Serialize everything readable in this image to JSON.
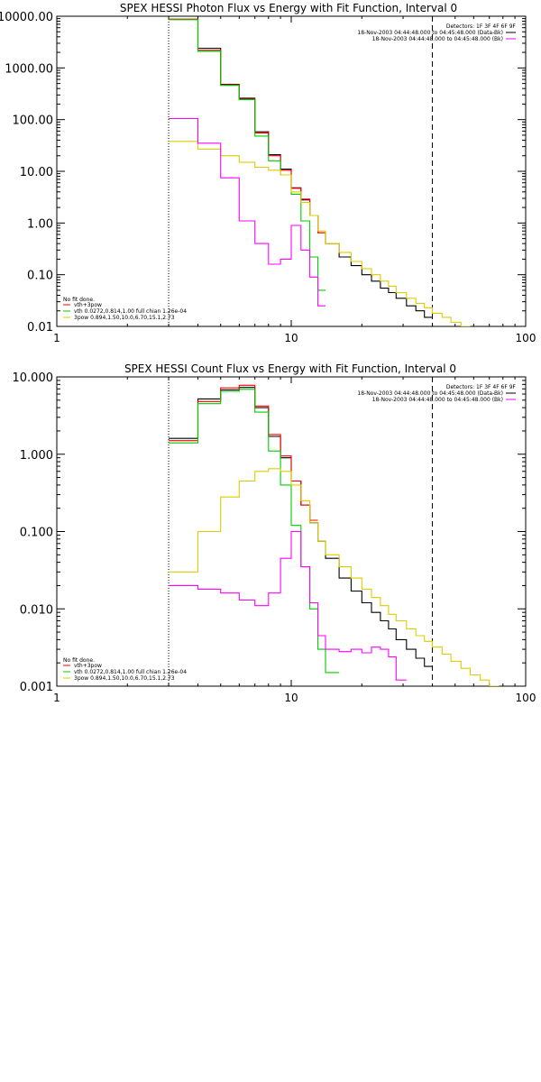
{
  "chart_data": [
    {
      "type": "line",
      "title": "SPEX HESSI Photon Flux vs Energy with Fit Function, Interval 0",
      "xscale": "log",
      "yscale": "log",
      "xlim": [
        1,
        100
      ],
      "ylim": [
        0.01,
        10000
      ],
      "xticks": [
        1,
        10,
        100
      ],
      "xtick_labels": [
        "1",
        "10",
        "100"
      ],
      "yticks": [
        0.01,
        0.1,
        1,
        10,
        100,
        1000,
        10000
      ],
      "ytick_labels": [
        "0.01",
        "0.10",
        "1.00",
        "10.00",
        "100.00",
        "1000.00",
        "10000.00"
      ],
      "vlines": [
        {
          "x": 3,
          "style": "dotted",
          "color": "#000000"
        },
        {
          "x": 40,
          "style": "dashed",
          "color": "#000000"
        }
      ],
      "info_lines": [
        "Detectors: 1F 3F 4F 6F 9F",
        "18-Nov-2003 04:44:48.000 to 04:45:48.000 (Data-Bk)",
        "18-Nov-2003 04:44:48.000 to 04:45:48.000 (Bk)"
      ],
      "info_colors": [
        "#000000",
        "#000000",
        "#ff00ff"
      ],
      "fit_notes": [
        {
          "text": "No fit done.",
          "color": null
        },
        {
          "text": "vth+3pow",
          "color": "#ff0000"
        },
        {
          "text": "vth 0.0272,0.814,1.00  full chian 1.26e-04",
          "color": "#00cc00"
        },
        {
          "text": "3pow 0.894,1.50,10.0,6.70,15.1,2.73",
          "color": "#ddcc00"
        }
      ],
      "edges": [
        3,
        4,
        5,
        6,
        7,
        8,
        9,
        10,
        11,
        12,
        13,
        14,
        16,
        18,
        20,
        22,
        24,
        26,
        28,
        31,
        34,
        37,
        40,
        44,
        48,
        53,
        58,
        64
      ],
      "series": [
        {
          "color": "#000000",
          "values": [
            10000,
            2400,
            480,
            260,
            58,
            21,
            11,
            4.8,
            2.8,
            1.4,
            0.65,
            0.4,
            0.22,
            0.15,
            0.1,
            0.075,
            0.055,
            0.045,
            0.035,
            0.025,
            0.02,
            0.015,
            null,
            null,
            null,
            null,
            null
          ]
        },
        {
          "color": "#ff0000",
          "values": [
            8800,
            2200,
            470,
            250,
            55,
            20,
            10.5,
            4.7,
            2.9,
            1.4,
            0.65,
            0.4,
            null,
            null,
            null,
            null,
            null,
            null,
            null,
            null,
            null,
            null,
            null,
            null,
            null,
            null,
            null
          ]
        },
        {
          "color": "#00cc00",
          "values": [
            8600,
            2100,
            460,
            245,
            48,
            16,
            8.5,
            3.6,
            1.1,
            0.22,
            0.05,
            null,
            null,
            null,
            null,
            null,
            null,
            null,
            null,
            null,
            null,
            null,
            null,
            null,
            null,
            null,
            null
          ]
        },
        {
          "color": "#ddcc00",
          "values": [
            38,
            27,
            20,
            15,
            12,
            10.5,
            8.5,
            4.0,
            2.5,
            1.4,
            0.7,
            0.4,
            0.27,
            0.18,
            0.13,
            0.1,
            0.075,
            0.06,
            0.045,
            0.035,
            0.028,
            0.023,
            0.018,
            0.015,
            0.012,
            0.01,
            null
          ]
        },
        {
          "color": "#ff00ff",
          "values": [
            105,
            35,
            7.5,
            1.1,
            0.4,
            0.16,
            0.2,
            0.9,
            0.3,
            0.09,
            0.025,
            null,
            null,
            null,
            null,
            null,
            null,
            null,
            null,
            null,
            null,
            null,
            null,
            null,
            null,
            null,
            null
          ]
        }
      ]
    },
    {
      "type": "line",
      "title": "SPEX HESSI Count Flux vs Energy with Fit Function, Interval 0",
      "xscale": "log",
      "yscale": "log",
      "xlim": [
        1,
        100
      ],
      "ylim": [
        0.001,
        10
      ],
      "xticks": [
        1,
        10,
        100
      ],
      "xtick_labels": [
        "1",
        "10",
        "100"
      ],
      "yticks": [
        0.001,
        0.01,
        0.1,
        1,
        10
      ],
      "ytick_labels": [
        "0.001",
        "0.010",
        "0.100",
        "1.000",
        "10.000"
      ],
      "vlines": [
        {
          "x": 3,
          "style": "dotted",
          "color": "#000000"
        },
        {
          "x": 40,
          "style": "dashed",
          "color": "#000000"
        }
      ],
      "info_lines": [
        "Detectors: 1F 3F 4F 6F 9F",
        "18-Nov-2003 04:44:48.000 to 04:45:48.000 (Data-Bk)",
        "18-Nov-2003 04:44:48.000 to 04:45:48.000 (Bk)"
      ],
      "info_colors": [
        "#000000",
        "#000000",
        "#ff00ff"
      ],
      "fit_notes": [
        {
          "text": "No fit done.",
          "color": null
        },
        {
          "text": "vth+3pow",
          "color": "#ff0000"
        },
        {
          "text": "vth 0.0272,0.814,1.00  full chian 1.26e-04",
          "color": "#00cc00"
        },
        {
          "text": "3pow 0.894,1.50,10.0,6.70,15.1,2.73",
          "color": "#ddcc00"
        }
      ],
      "edges": [
        3,
        4,
        5,
        6,
        7,
        8,
        9,
        10,
        11,
        12,
        13,
        14,
        16,
        18,
        20,
        22,
        24,
        26,
        28,
        31,
        34,
        37,
        40,
        44,
        48,
        53,
        58,
        64,
        70,
        77
      ],
      "series": [
        {
          "color": "#000000",
          "values": [
            1.6,
            5.2,
            6.8,
            7.3,
            4.0,
            1.7,
            0.9,
            0.45,
            0.22,
            0.13,
            0.075,
            0.045,
            0.025,
            0.017,
            0.012,
            0.009,
            0.007,
            0.0055,
            0.004,
            0.003,
            0.0023,
            0.0018,
            null,
            null,
            null,
            null,
            null,
            null,
            null
          ]
        },
        {
          "color": "#ff0000",
          "values": [
            1.5,
            4.8,
            7.2,
            7.8,
            4.2,
            1.8,
            0.95,
            0.45,
            0.22,
            0.14,
            null,
            null,
            null,
            null,
            null,
            null,
            null,
            null,
            null,
            null,
            null,
            null,
            null,
            null,
            null,
            null,
            null,
            null,
            null
          ]
        },
        {
          "color": "#00cc00",
          "values": [
            1.4,
            4.5,
            6.5,
            6.9,
            3.5,
            1.1,
            0.4,
            0.12,
            0.035,
            0.01,
            0.003,
            0.0015,
            null,
            null,
            null,
            null,
            null,
            null,
            null,
            null,
            null,
            null,
            null,
            null,
            null,
            null,
            null,
            null,
            null
          ]
        },
        {
          "color": "#ddcc00",
          "values": [
            0.03,
            0.1,
            0.28,
            0.45,
            0.6,
            0.65,
            0.6,
            0.4,
            0.25,
            0.13,
            0.075,
            0.05,
            0.035,
            0.025,
            0.018,
            0.014,
            0.011,
            0.0085,
            0.007,
            0.0055,
            0.0045,
            0.0038,
            0.0032,
            0.0026,
            0.0021,
            0.0017,
            0.0014,
            0.0012,
            0.001
          ]
        },
        {
          "color": "#ff00ff",
          "values": [
            0.02,
            0.018,
            0.016,
            0.013,
            0.011,
            0.016,
            0.045,
            0.1,
            0.035,
            0.012,
            0.0045,
            0.003,
            0.0028,
            0.003,
            0.0027,
            0.0032,
            0.003,
            0.0024,
            0.0012,
            null,
            null,
            null,
            null,
            null,
            null,
            null,
            null,
            null,
            null
          ]
        }
      ]
    }
  ]
}
